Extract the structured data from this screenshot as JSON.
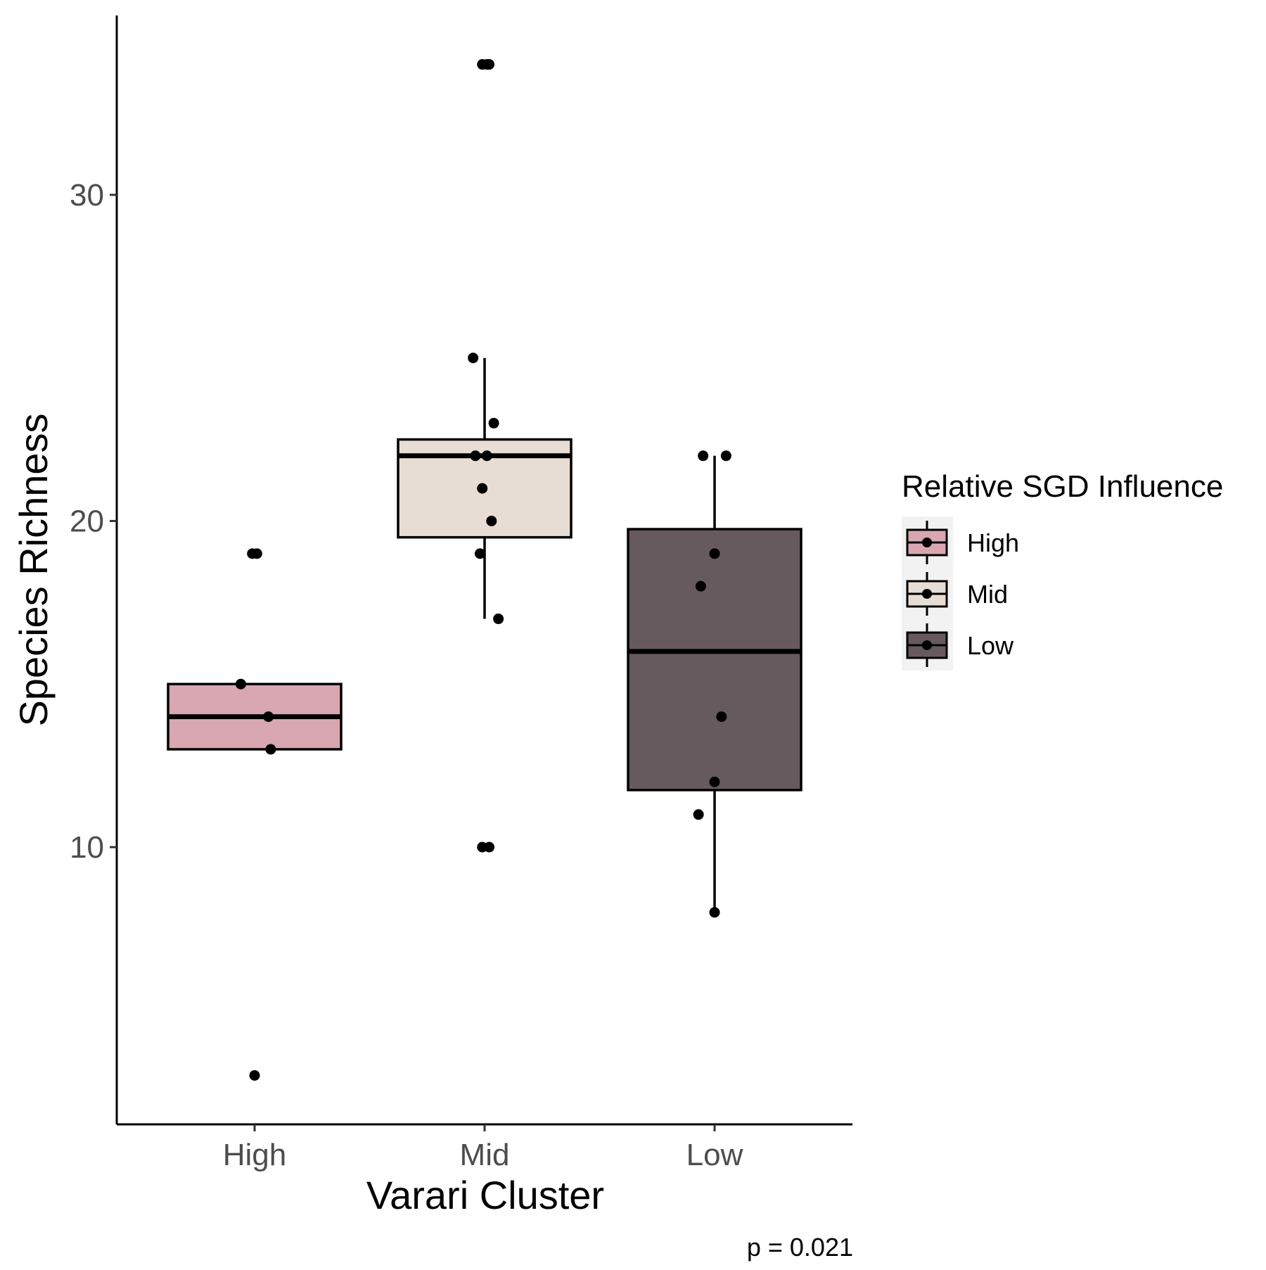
{
  "chart_data": {
    "type": "box",
    "xlabel": "Varari Cluster",
    "ylabel": "Species Richness",
    "caption": "p = 0.021",
    "categories": [
      "High",
      "Mid",
      "Low"
    ],
    "ylim": [
      1.5,
      35.5
    ],
    "yticks": [
      10,
      20,
      30
    ],
    "grid": false,
    "legend": {
      "title": "Relative SGD Influence",
      "placement": "right",
      "entries": [
        "High",
        "Mid",
        "Low"
      ]
    },
    "colors": {
      "High": "#d8a7b1",
      "Mid": "#e8ddd4",
      "Low": "#675a5f"
    },
    "boxes": [
      {
        "category": "High",
        "lower_whisker": 13,
        "q1": 13,
        "median": 14,
        "q3": 15,
        "upper_whisker": 15
      },
      {
        "category": "Mid",
        "lower_whisker": 17,
        "q1": 19.5,
        "median": 22,
        "q3": 22.5,
        "upper_whisker": 25
      },
      {
        "category": "Low",
        "lower_whisker": 8,
        "q1": 11.75,
        "median": 16,
        "q3": 19.75,
        "upper_whisker": 22
      }
    ],
    "points": [
      {
        "category": "High",
        "jitter": -0.01,
        "y": 19
      },
      {
        "category": "High",
        "jitter": 0.01,
        "y": 19
      },
      {
        "category": "High",
        "jitter": -0.06,
        "y": 15
      },
      {
        "category": "High",
        "jitter": 0.06,
        "y": 14
      },
      {
        "category": "High",
        "jitter": 0.07,
        "y": 13
      },
      {
        "category": "High",
        "jitter": 0.0,
        "y": 3
      },
      {
        "category": "Mid",
        "jitter": -0.01,
        "y": 34
      },
      {
        "category": "Mid",
        "jitter": 0.01,
        "y": 34
      },
      {
        "category": "Mid",
        "jitter": 0.02,
        "y": 34
      },
      {
        "category": "Mid",
        "jitter": -0.05,
        "y": 25
      },
      {
        "category": "Mid",
        "jitter": 0.04,
        "y": 23
      },
      {
        "category": "Mid",
        "jitter": -0.04,
        "y": 22
      },
      {
        "category": "Mid",
        "jitter": 0.01,
        "y": 22
      },
      {
        "category": "Mid",
        "jitter": -0.01,
        "y": 21
      },
      {
        "category": "Mid",
        "jitter": 0.03,
        "y": 20
      },
      {
        "category": "Mid",
        "jitter": -0.02,
        "y": 19
      },
      {
        "category": "Mid",
        "jitter": 0.06,
        "y": 17
      },
      {
        "category": "Mid",
        "jitter": -0.01,
        "y": 10
      },
      {
        "category": "Mid",
        "jitter": 0.02,
        "y": 10
      },
      {
        "category": "Low",
        "jitter": -0.05,
        "y": 22
      },
      {
        "category": "Low",
        "jitter": 0.05,
        "y": 22
      },
      {
        "category": "Low",
        "jitter": 0.0,
        "y": 19
      },
      {
        "category": "Low",
        "jitter": -0.06,
        "y": 18
      },
      {
        "category": "Low",
        "jitter": 0.03,
        "y": 14
      },
      {
        "category": "Low",
        "jitter": 0.0,
        "y": 12
      },
      {
        "category": "Low",
        "jitter": -0.07,
        "y": 11
      },
      {
        "category": "Low",
        "jitter": 0.0,
        "y": 8
      }
    ]
  }
}
